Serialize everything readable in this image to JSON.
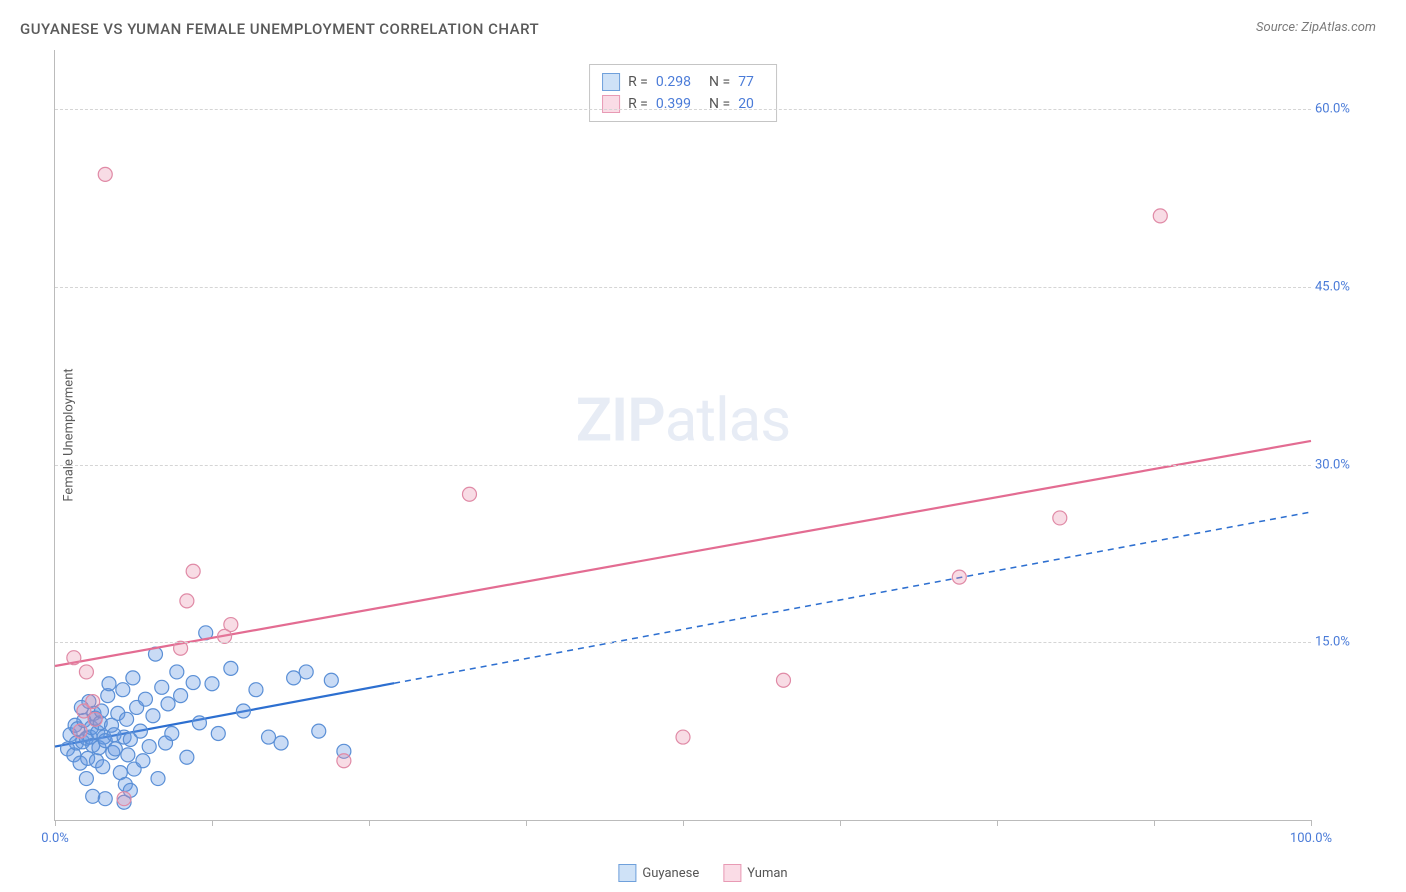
{
  "title": "GUYANESE VS YUMAN FEMALE UNEMPLOYMENT CORRELATION CHART",
  "source_label": "Source: ZipAtlas.com",
  "y_axis_label": "Female Unemployment",
  "watermark": {
    "zip": "ZIP",
    "atlas": "atlas"
  },
  "chart": {
    "type": "scatter",
    "xlim": [
      0,
      100
    ],
    "ylim": [
      0,
      65
    ],
    "x_ticks": [
      0,
      12.5,
      25,
      37.5,
      50,
      62.5,
      75,
      87.5,
      100
    ],
    "x_tick_labels": {
      "0": "0.0%",
      "100": "100.0%"
    },
    "y_gridlines": [
      15,
      30,
      45,
      60
    ],
    "y_tick_labels": [
      "15.0%",
      "30.0%",
      "45.0%",
      "60.0%"
    ],
    "background_color": "#ffffff",
    "grid_color": "#d5d5d5",
    "axis_color": "#bbbbbb",
    "label_color": "#4a7bd8",
    "marker_radius": 7,
    "marker_stroke_width": 1.2,
    "series": [
      {
        "name": "Guyanese",
        "fill_color": "rgba(99, 153, 226, 0.35)",
        "stroke_color": "#5a8fd6",
        "swatch_fill": "#cfe2f7",
        "swatch_border": "#6fa0db",
        "R": "0.298",
        "N": "77",
        "trend_color": "#2d6fd0",
        "trend_width": 2.2,
        "trend_solid_to_x": 27,
        "trend": {
          "x1": 0,
          "y1": 6.2,
          "x2": 100,
          "y2": 26.0
        },
        "points": [
          [
            1.0,
            6.0
          ],
          [
            1.2,
            7.2
          ],
          [
            1.5,
            5.5
          ],
          [
            1.6,
            8.0
          ],
          [
            1.7,
            6.5
          ],
          [
            1.8,
            7.7
          ],
          [
            2.0,
            4.8
          ],
          [
            2.1,
            9.5
          ],
          [
            2.2,
            6.6
          ],
          [
            2.3,
            8.4
          ],
          [
            2.5,
            6.9
          ],
          [
            2.6,
            5.2
          ],
          [
            2.7,
            10.0
          ],
          [
            2.8,
            7.0
          ],
          [
            2.9,
            7.8
          ],
          [
            3.0,
            6.3
          ],
          [
            3.1,
            9.0
          ],
          [
            3.2,
            8.6
          ],
          [
            3.3,
            5.0
          ],
          [
            3.4,
            7.4
          ],
          [
            3.5,
            6.1
          ],
          [
            3.6,
            8.2
          ],
          [
            3.7,
            9.2
          ],
          [
            3.8,
            4.5
          ],
          [
            3.9,
            7.0
          ],
          [
            4.0,
            6.7
          ],
          [
            4.2,
            10.5
          ],
          [
            4.3,
            11.5
          ],
          [
            4.5,
            8.0
          ],
          [
            4.6,
            5.7
          ],
          [
            4.7,
            7.2
          ],
          [
            4.8,
            6.0
          ],
          [
            5.0,
            9.0
          ],
          [
            5.2,
            4.0
          ],
          [
            5.4,
            11.0
          ],
          [
            5.5,
            7.0
          ],
          [
            5.6,
            3.0
          ],
          [
            5.7,
            8.5
          ],
          [
            5.8,
            5.5
          ],
          [
            6.0,
            6.8
          ],
          [
            6.2,
            12.0
          ],
          [
            6.3,
            4.3
          ],
          [
            6.5,
            9.5
          ],
          [
            6.8,
            7.5
          ],
          [
            7.0,
            5.0
          ],
          [
            7.2,
            10.2
          ],
          [
            7.5,
            6.2
          ],
          [
            7.8,
            8.8
          ],
          [
            8.0,
            14.0
          ],
          [
            8.2,
            3.5
          ],
          [
            8.5,
            11.2
          ],
          [
            8.8,
            6.5
          ],
          [
            9.0,
            9.8
          ],
          [
            9.3,
            7.3
          ],
          [
            9.7,
            12.5
          ],
          [
            10.0,
            10.5
          ],
          [
            10.5,
            5.3
          ],
          [
            11.0,
            11.6
          ],
          [
            11.5,
            8.2
          ],
          [
            12.0,
            15.8
          ],
          [
            12.5,
            11.5
          ],
          [
            13.0,
            7.3
          ],
          [
            14.0,
            12.8
          ],
          [
            15.0,
            9.2
          ],
          [
            16.0,
            11.0
          ],
          [
            17.0,
            7.0
          ],
          [
            18.0,
            6.5
          ],
          [
            19.0,
            12.0
          ],
          [
            20.0,
            12.5
          ],
          [
            21.0,
            7.5
          ],
          [
            22.0,
            11.8
          ],
          [
            23.0,
            5.8
          ],
          [
            3.0,
            2.0
          ],
          [
            4.0,
            1.8
          ],
          [
            5.5,
            1.5
          ],
          [
            6.0,
            2.5
          ],
          [
            2.5,
            3.5
          ]
        ]
      },
      {
        "name": "Yuman",
        "fill_color": "rgba(232, 140, 168, 0.30)",
        "stroke_color": "#e08aa6",
        "swatch_fill": "#fadce6",
        "swatch_border": "#e89ab4",
        "R": "0.399",
        "N": "20",
        "trend_color": "#e36c92",
        "trend_width": 2.2,
        "trend_solid_to_x": 100,
        "trend": {
          "x1": 0,
          "y1": 13.0,
          "x2": 100,
          "y2": 32.0
        },
        "points": [
          [
            1.5,
            13.7
          ],
          [
            2.0,
            7.5
          ],
          [
            2.3,
            9.2
          ],
          [
            2.5,
            12.5
          ],
          [
            3.2,
            8.5
          ],
          [
            4.0,
            54.5
          ],
          [
            5.5,
            1.8
          ],
          [
            10.0,
            14.5
          ],
          [
            10.5,
            18.5
          ],
          [
            11.0,
            21.0
          ],
          [
            13.5,
            15.5
          ],
          [
            14.0,
            16.5
          ],
          [
            23.0,
            5.0
          ],
          [
            33.0,
            27.5
          ],
          [
            50.0,
            7.0
          ],
          [
            58.0,
            11.8
          ],
          [
            72.0,
            20.5
          ],
          [
            80.0,
            25.5
          ],
          [
            88.0,
            51.0
          ],
          [
            3.0,
            10.0
          ]
        ]
      }
    ]
  },
  "legend": {
    "series1_label": "Guyanese",
    "series2_label": "Yuman",
    "stat_r_label": "R =",
    "stat_n_label": "N ="
  }
}
